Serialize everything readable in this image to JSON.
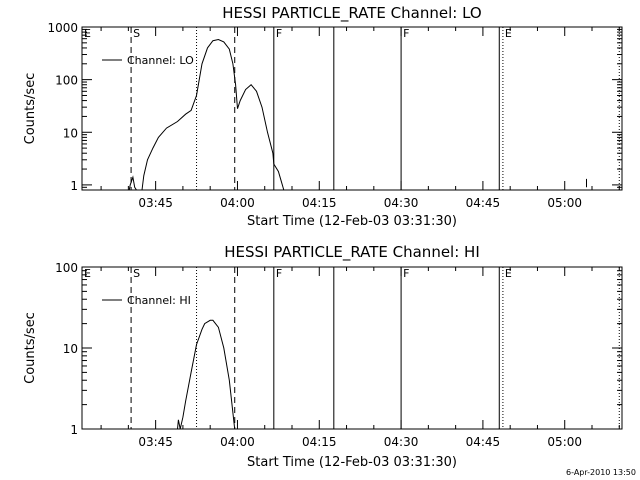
{
  "chart_data": [
    {
      "type": "line",
      "title": "HESSI PARTICLE_RATE Channel: LO",
      "xlabel": "Start Time (12-Feb-03 03:31:30)",
      "ylabel": "Counts/sec",
      "yscale": "log",
      "ylim": [
        0.8,
        1000
      ],
      "xlim": [
        "03:31:30",
        "05:10:30"
      ],
      "x_ticks": [
        "03:45",
        "04:00",
        "04:15",
        "04:30",
        "04:45",
        "05:00"
      ],
      "y_ticks": [
        "1",
        "10",
        "100",
        "1000"
      ],
      "legend": {
        "label": "Channel: LO",
        "position": "top-left"
      },
      "markers": [
        {
          "label": "E",
          "time": "03:31:30",
          "style": "none"
        },
        {
          "label": "S",
          "time": "03:40:30",
          "style": "dashed"
        },
        {
          "label": "",
          "time": "03:52:30",
          "style": "dotted"
        },
        {
          "label": "",
          "time": "03:59:30",
          "style": "dashed"
        },
        {
          "label": "F",
          "time": "04:06:40",
          "style": "solid"
        },
        {
          "label": "",
          "time": "04:17:40",
          "style": "solid"
        },
        {
          "label": "F",
          "time": "04:30:00",
          "style": "solid"
        },
        {
          "label": "",
          "time": "04:48:00",
          "style": "solid"
        },
        {
          "label": "E",
          "time": "04:48:40",
          "style": "dotted"
        },
        {
          "label": "",
          "time": "05:10:00",
          "style": "dotted"
        }
      ],
      "series": [
        {
          "values": [
            {
              "x": "03:40:10",
              "y": 0.8
            },
            {
              "x": "03:40:20",
              "y": 1.0
            },
            {
              "x": "03:40:50",
              "y": 1.4
            },
            {
              "x": "03:41:10",
              "y": 0.9
            },
            {
              "x": "03:41:30",
              "y": 0.8
            },
            {
              "x": "03:42:30",
              "y": 0.8
            },
            {
              "x": "03:42:50",
              "y": 1.5
            },
            {
              "x": "03:43:30",
              "y": 3
            },
            {
              "x": "03:44:30",
              "y": 5
            },
            {
              "x": "03:45:30",
              "y": 8
            },
            {
              "x": "03:47:00",
              "y": 12
            },
            {
              "x": "03:49:00",
              "y": 16
            },
            {
              "x": "03:50:30",
              "y": 22
            },
            {
              "x": "03:51:30",
              "y": 26
            },
            {
              "x": "03:52:30",
              "y": 50
            },
            {
              "x": "03:53:30",
              "y": 200
            },
            {
              "x": "03:54:30",
              "y": 400
            },
            {
              "x": "03:55:30",
              "y": 550
            },
            {
              "x": "03:56:30",
              "y": 580
            },
            {
              "x": "03:57:30",
              "y": 520
            },
            {
              "x": "03:58:30",
              "y": 380
            },
            {
              "x": "03:59:10",
              "y": 200
            },
            {
              "x": "03:59:40",
              "y": 80
            },
            {
              "x": "04:00:00",
              "y": 28
            },
            {
              "x": "04:00:30",
              "y": 40
            },
            {
              "x": "04:01:30",
              "y": 65
            },
            {
              "x": "04:02:30",
              "y": 80
            },
            {
              "x": "04:03:30",
              "y": 60
            },
            {
              "x": "04:04:30",
              "y": 30
            },
            {
              "x": "04:05:30",
              "y": 10
            },
            {
              "x": "04:06:30",
              "y": 4
            },
            {
              "x": "04:06:40",
              "y": 2.5
            },
            {
              "x": "04:07:30",
              "y": 1.8
            },
            {
              "x": "04:08:00",
              "y": 1.2
            },
            {
              "x": "04:08:30",
              "y": 0.8
            }
          ]
        },
        {
          "values": [
            {
              "x": "05:04:00",
              "y": 0.9
            },
            {
              "x": "05:04:00",
              "y": 1.3
            }
          ]
        }
      ]
    },
    {
      "type": "line",
      "title": "HESSI PARTICLE_RATE Channel: HI",
      "xlabel": "Start Time (12-Feb-03 03:31:30)",
      "ylabel": "Counts/sec",
      "yscale": "log",
      "ylim": [
        1,
        100
      ],
      "xlim": [
        "03:31:30",
        "05:10:30"
      ],
      "x_ticks": [
        "03:45",
        "04:00",
        "04:15",
        "04:30",
        "04:45",
        "05:00"
      ],
      "y_ticks": [
        "1",
        "10",
        "100"
      ],
      "legend": {
        "label": "Channel: HI",
        "position": "top-left"
      },
      "markers": [
        {
          "label": "E",
          "time": "03:31:30",
          "style": "none"
        },
        {
          "label": "S",
          "time": "03:40:30",
          "style": "dashed"
        },
        {
          "label": "",
          "time": "03:52:30",
          "style": "dotted"
        },
        {
          "label": "",
          "time": "03:59:30",
          "style": "dashed"
        },
        {
          "label": "F",
          "time": "04:06:40",
          "style": "solid"
        },
        {
          "label": "",
          "time": "04:17:40",
          "style": "solid"
        },
        {
          "label": "F",
          "time": "04:30:00",
          "style": "solid"
        },
        {
          "label": "",
          "time": "04:48:00",
          "style": "solid"
        },
        {
          "label": "E",
          "time": "04:48:40",
          "style": "dotted"
        },
        {
          "label": "",
          "time": "05:10:00",
          "style": "dotted"
        }
      ],
      "series": [
        {
          "values": [
            {
              "x": "03:49:00",
              "y": 1.0
            },
            {
              "x": "03:49:10",
              "y": 1.3
            },
            {
              "x": "03:49:30",
              "y": 1.0
            },
            {
              "x": "03:50:00",
              "y": 1.4
            },
            {
              "x": "03:50:30",
              "y": 2.2
            },
            {
              "x": "03:51:30",
              "y": 5
            },
            {
              "x": "03:52:30",
              "y": 11
            },
            {
              "x": "03:53:30",
              "y": 17
            },
            {
              "x": "03:54:00",
              "y": 20
            },
            {
              "x": "03:55:00",
              "y": 22
            },
            {
              "x": "03:55:30",
              "y": 22
            },
            {
              "x": "03:56:30",
              "y": 18
            },
            {
              "x": "03:57:30",
              "y": 10
            },
            {
              "x": "03:58:30",
              "y": 4
            },
            {
              "x": "03:59:00",
              "y": 2
            },
            {
              "x": "03:59:30",
              "y": 1.0
            }
          ]
        }
      ]
    }
  ],
  "timestamp": "6-Apr-2010 13:50"
}
